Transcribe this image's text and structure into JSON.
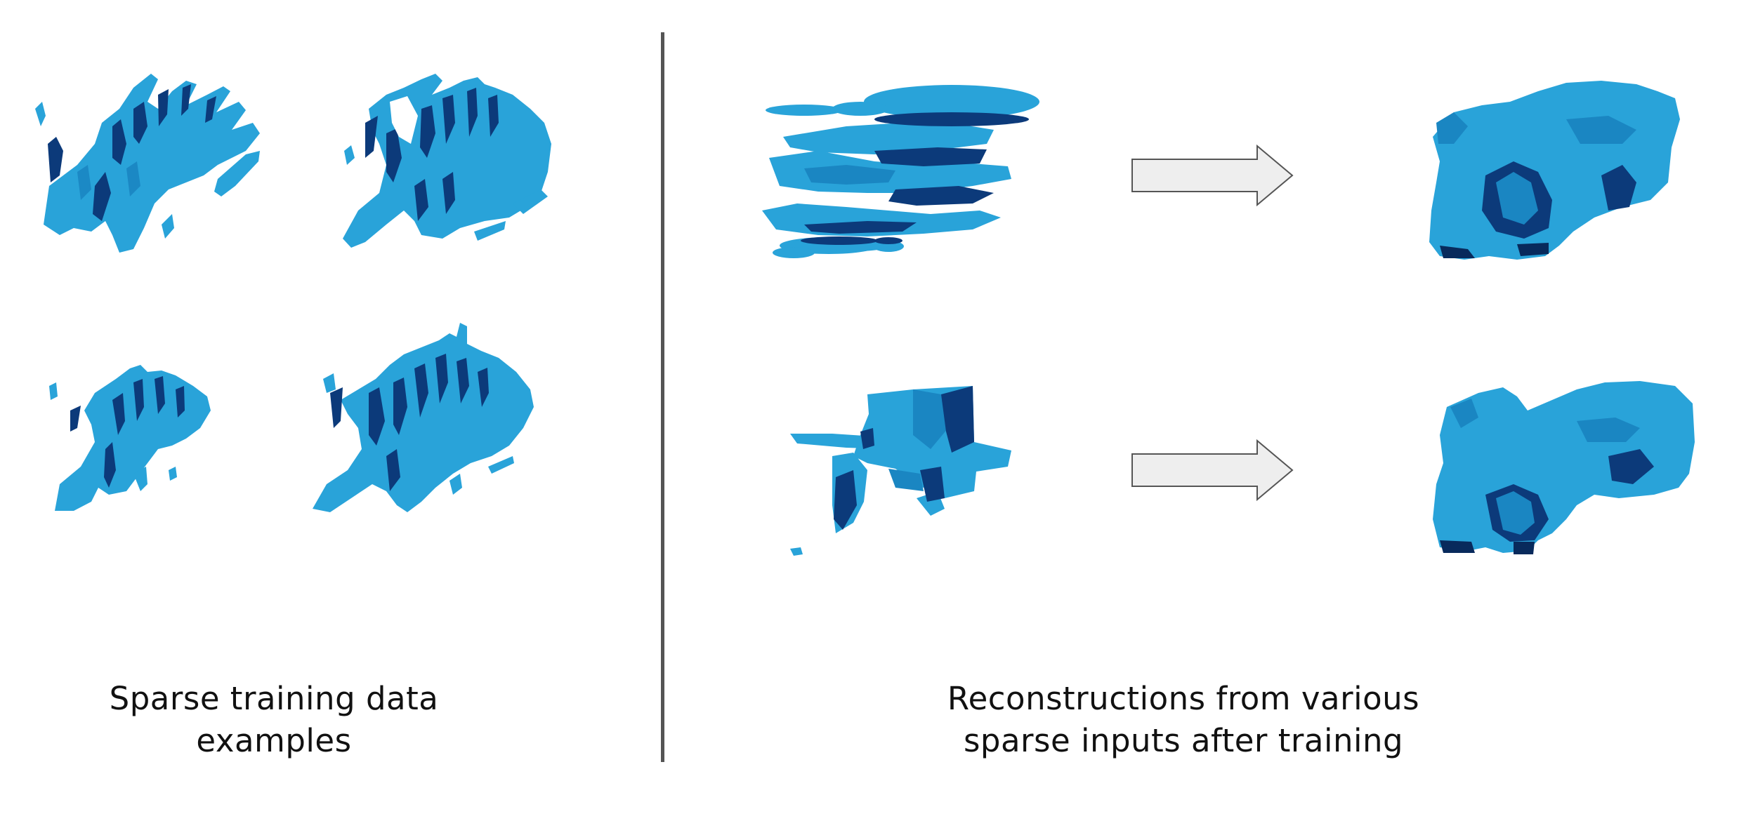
{
  "figure": {
    "left_panel": {
      "caption_line1": "Sparse training data",
      "caption_line2": "examples",
      "examples": [
        {
          "name": "training-example-1"
        },
        {
          "name": "training-example-2"
        },
        {
          "name": "training-example-3"
        },
        {
          "name": "training-example-4"
        }
      ]
    },
    "right_panel": {
      "caption_line1": "Reconstructions from various",
      "caption_line2": "sparse inputs after training",
      "rows": [
        {
          "input": "sparse-input-1",
          "output": "reconstruction-1"
        },
        {
          "input": "sparse-input-2",
          "output": "reconstruction-2"
        }
      ]
    },
    "colors": {
      "voxel_light": "#29a3d9",
      "voxel_mid": "#1a86c2",
      "voxel_dark": "#0c3a7a",
      "voxel_shadow": "#082a5c",
      "arrow_fill": "#eeeeee",
      "arrow_stroke": "#555555",
      "divider": "#555555"
    }
  }
}
